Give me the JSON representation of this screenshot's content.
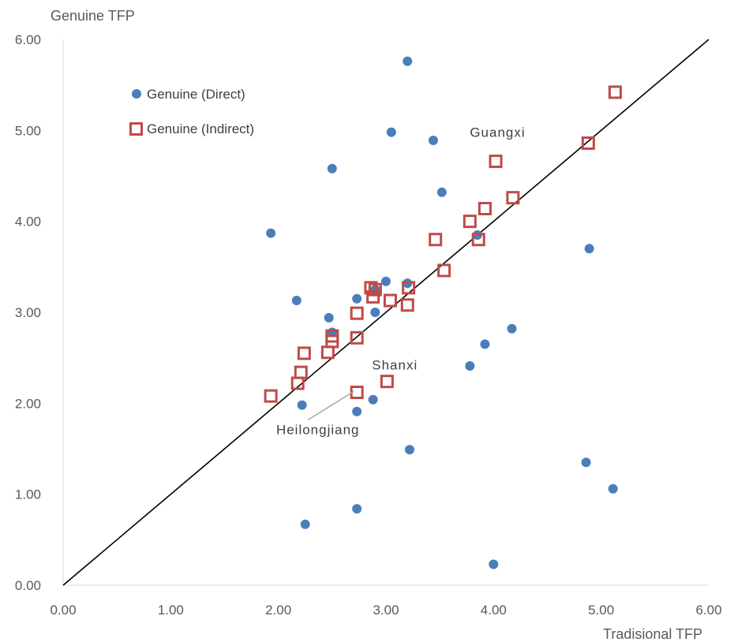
{
  "chart_data": {
    "type": "scatter",
    "xlabel": "Tradisional TFP",
    "ylabel": "Genuine TFP",
    "xlim": [
      0,
      6
    ],
    "ylim": [
      0,
      6
    ],
    "x_ticks": [
      "0.00",
      "1.00",
      "2.00",
      "3.00",
      "4.00",
      "5.00",
      "6.00"
    ],
    "y_ticks": [
      "0.00",
      "1.00",
      "2.00",
      "3.00",
      "4.00",
      "5.00",
      "6.00"
    ],
    "grid": false,
    "legend_position": "top-left",
    "reference_line": {
      "from": [
        0,
        0
      ],
      "to": [
        6,
        6
      ],
      "color": "#000000"
    },
    "series": [
      {
        "name": "Genuine (Direct)",
        "marker": "circle",
        "color": "#4A7EBB",
        "points": [
          [
            3.2,
            5.76
          ],
          [
            3.05,
            4.98
          ],
          [
            3.44,
            4.89
          ],
          [
            2.5,
            4.58
          ],
          [
            3.52,
            4.32
          ],
          [
            1.93,
            3.87
          ],
          [
            3.85,
            3.85
          ],
          [
            4.89,
            3.7
          ],
          [
            3.0,
            3.34
          ],
          [
            3.2,
            3.32
          ],
          [
            2.9,
            3.25
          ],
          [
            2.17,
            3.13
          ],
          [
            2.73,
            3.15
          ],
          [
            2.47,
            2.94
          ],
          [
            2.9,
            3.0
          ],
          [
            2.5,
            2.78
          ],
          [
            4.17,
            2.82
          ],
          [
            3.92,
            2.65
          ],
          [
            3.78,
            2.41
          ],
          [
            2.88,
            2.04
          ],
          [
            2.22,
            1.98
          ],
          [
            2.73,
            1.91
          ],
          [
            3.22,
            1.49
          ],
          [
            4.86,
            1.35
          ],
          [
            5.11,
            1.06
          ],
          [
            2.73,
            0.84
          ],
          [
            2.25,
            0.67
          ],
          [
            4.0,
            0.23
          ]
        ]
      },
      {
        "name": "Genuine (Indirect)",
        "marker": "square-open",
        "color": "#BE4B48",
        "points": [
          [
            5.13,
            5.42
          ],
          [
            4.88,
            4.86
          ],
          [
            4.02,
            4.66
          ],
          [
            4.18,
            4.26
          ],
          [
            3.92,
            4.14
          ],
          [
            3.78,
            4.0
          ],
          [
            3.46,
            3.8
          ],
          [
            3.86,
            3.8
          ],
          [
            3.54,
            3.46
          ],
          [
            2.86,
            3.27
          ],
          [
            2.9,
            3.25
          ],
          [
            3.21,
            3.27
          ],
          [
            2.88,
            3.17
          ],
          [
            3.04,
            3.13
          ],
          [
            3.2,
            3.08
          ],
          [
            2.73,
            2.99
          ],
          [
            2.5,
            2.74
          ],
          [
            2.5,
            2.68
          ],
          [
            2.73,
            2.72
          ],
          [
            2.24,
            2.55
          ],
          [
            2.46,
            2.56
          ],
          [
            2.21,
            2.34
          ],
          [
            2.18,
            2.22
          ],
          [
            3.01,
            2.24
          ],
          [
            2.73,
            2.12
          ],
          [
            1.93,
            2.08
          ]
        ]
      }
    ],
    "annotations": [
      {
        "text": "Guangxi",
        "x": 3.78,
        "y": 4.93
      },
      {
        "text": "Shanxi",
        "x": 2.87,
        "y": 2.37
      },
      {
        "text": "Heilongjiang",
        "x": 1.98,
        "y": 1.66,
        "arrow_to": [
          2.7,
          2.13
        ]
      }
    ]
  }
}
